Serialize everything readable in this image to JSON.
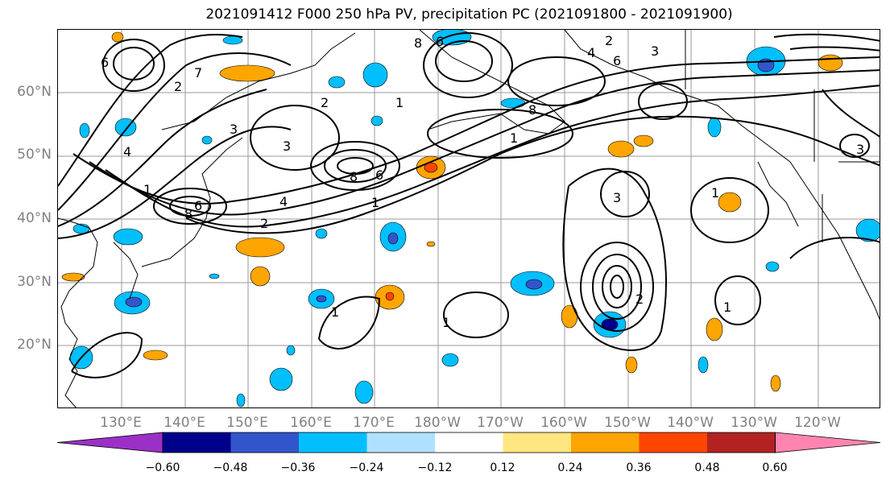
{
  "title": "2021091412 F000 250 hPa PV, precipitation PC (2021091800 - 2021091900)",
  "lat_labels": [
    "60°N",
    "50°N",
    "40°N",
    "30°N",
    "20°N"
  ],
  "lon_labels": [
    "130°E",
    "140°E",
    "150°E",
    "160°E",
    "170°E",
    "180°W",
    "170°W",
    "160°W",
    "150°W",
    "140°W",
    "130°W",
    "120°W"
  ],
  "colorbar": {
    "ticks": [
      "−0.60",
      "−0.48",
      "−0.36",
      "−0.24",
      "−0.12",
      "0.12",
      "0.24",
      "0.36",
      "0.48",
      "0.60"
    ],
    "colors": [
      "#9b30c8",
      "#00008b",
      "#3355cc",
      "#00bfff",
      "#b0e0ff",
      "#ffffff",
      "#ffe680",
      "#ffa500",
      "#ff4500",
      "#b22222",
      "#ff85b0"
    ]
  },
  "contour_labels": [
    "6",
    "7",
    "2",
    "3",
    "4",
    "1",
    "8",
    "6",
    "2",
    "4",
    "6",
    "3",
    "8",
    "1",
    "6",
    "2",
    "3",
    "8",
    "1",
    "4",
    "2",
    "1",
    "3",
    "1",
    "1",
    "1",
    "2",
    "8",
    "6",
    "1",
    "3"
  ]
}
